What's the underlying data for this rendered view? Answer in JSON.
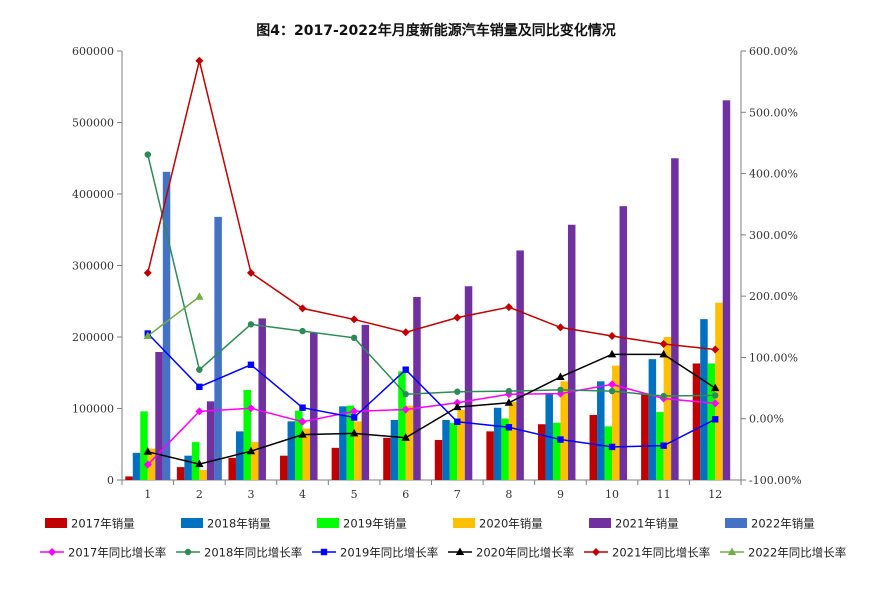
{
  "chart_data": {
    "type": "bar+line",
    "title": "图4：2017-2022年月度新能源汽车销量及同比变化情况",
    "categories": [
      "1",
      "2",
      "3",
      "4",
      "5",
      "6",
      "7",
      "8",
      "9",
      "10",
      "11",
      "12"
    ],
    "y_left": {
      "range": [
        0,
        600000
      ],
      "ticks": [
        "0",
        "100000",
        "200000",
        "300000",
        "400000",
        "500000",
        "600000"
      ]
    },
    "y_right": {
      "range": [
        -100,
        600
      ],
      "ticks": [
        "-100.00%",
        "0.00%",
        "100.00%",
        "200.00%",
        "300.00%",
        "400.00%",
        "500.00%",
        "600.00%"
      ]
    },
    "bar_series": [
      {
        "name": "2017年销量",
        "color": "#c00000",
        "values": [
          5000,
          18000,
          31000,
          34000,
          45000,
          59000,
          56000,
          68000,
          78000,
          91000,
          120000,
          163000
        ]
      },
      {
        "name": "2018年销量",
        "color": "#0070c0",
        "values": [
          38000,
          34000,
          68000,
          82000,
          103000,
          84000,
          84000,
          101000,
          121000,
          138000,
          169000,
          225000
        ]
      },
      {
        "name": "2019年销量",
        "color": "#00ff00",
        "values": [
          96000,
          53000,
          126000,
          97000,
          104000,
          152000,
          80000,
          86000,
          80000,
          75000,
          95000,
          163000
        ]
      },
      {
        "name": "2020年销量",
        "color": "#ffc000",
        "values": [
          44000,
          14000,
          53000,
          72000,
          82000,
          104000,
          98000,
          109000,
          138000,
          160000,
          200000,
          248000
        ]
      },
      {
        "name": "2021年销量",
        "color": "#7030a0",
        "values": [
          179000,
          110000,
          226000,
          206000,
          217000,
          256000,
          271000,
          321000,
          357000,
          383000,
          450000,
          531000
        ]
      },
      {
        "name": "2022年销量",
        "color": "#4472c4",
        "values": [
          431000,
          368000
        ]
      }
    ],
    "line_series": [
      {
        "name": "2017年同比增长率",
        "color": "#ff00ff",
        "marker": "diamond",
        "values": [
          -75,
          12,
          17,
          -5,
          12,
          15,
          26,
          40,
          41,
          56,
          33,
          25
        ]
      },
      {
        "name": "2018年同比增长率",
        "color": "#2e8b57",
        "marker": "circle",
        "values": [
          431,
          80,
          154,
          143,
          132,
          40,
          44,
          45,
          47,
          45,
          37,
          38
        ]
      },
      {
        "name": "2019年同比增长率",
        "color": "#0000ff",
        "marker": "square",
        "values": [
          139,
          52,
          88,
          18,
          2,
          80,
          -5,
          -14,
          -34,
          -46,
          -44,
          -1
        ]
      },
      {
        "name": "2020年同比增长率",
        "color": "#000000",
        "marker": "triangle",
        "values": [
          -54,
          -74,
          -53,
          -26,
          -24,
          -31,
          19,
          26,
          68,
          105,
          105,
          50
        ]
      },
      {
        "name": "2021年同比增长率",
        "color": "#c00000",
        "marker": "diamond",
        "values": [
          238,
          584,
          238,
          180,
          162,
          141,
          165,
          182,
          149,
          135,
          122,
          113
        ]
      },
      {
        "name": "2022年同比增长率",
        "color": "#70ad47",
        "marker": "triangle",
        "values": [
          135,
          199
        ]
      }
    ],
    "legend_position": "bottom"
  }
}
